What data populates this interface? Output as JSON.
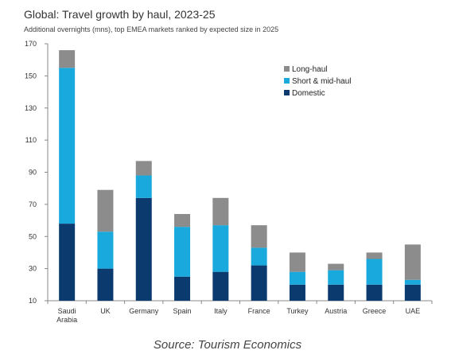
{
  "title": "Global: Travel growth by haul, 2023-25",
  "subtitle": "Additional overnights (mns), top EMEA markets ranked by expected size in 2025",
  "source": "Source: Tourism Economics",
  "chart_data": {
    "type": "bar",
    "stacked": true,
    "categories": [
      {
        "lines": [
          "Saudi",
          "Arabia"
        ]
      },
      {
        "lines": [
          "UK"
        ]
      },
      {
        "lines": [
          "Germany"
        ]
      },
      {
        "lines": [
          "Spain"
        ]
      },
      {
        "lines": [
          "Italy"
        ]
      },
      {
        "lines": [
          "France"
        ]
      },
      {
        "lines": [
          "Turkey"
        ]
      },
      {
        "lines": [
          "Austria"
        ]
      },
      {
        "lines": [
          "Greece"
        ]
      },
      {
        "lines": [
          "UAE"
        ]
      }
    ],
    "series": [
      {
        "name": "Domestic",
        "color": "#0b3a6e",
        "values": [
          48,
          20,
          64,
          15,
          18,
          22,
          10,
          10,
          10,
          10
        ]
      },
      {
        "name": "Short & mid-haul",
        "color": "#1aa9dc",
        "values": [
          97,
          23,
          14,
          31,
          29,
          11,
          8,
          9,
          16,
          3
        ]
      },
      {
        "name": "Long-haul",
        "color": "#8c8c8c",
        "values": [
          11,
          26,
          9,
          8,
          17,
          14,
          12,
          4,
          4,
          22
        ]
      }
    ],
    "legend_order": [
      "Long-haul",
      "Short & mid-haul",
      "Domestic"
    ],
    "legend_position": "top-right",
    "ylim": [
      10,
      170
    ],
    "yticks": [
      "10",
      "30",
      "50",
      "70",
      "90",
      "110",
      "130",
      "150",
      "170"
    ],
    "grid": false
  }
}
